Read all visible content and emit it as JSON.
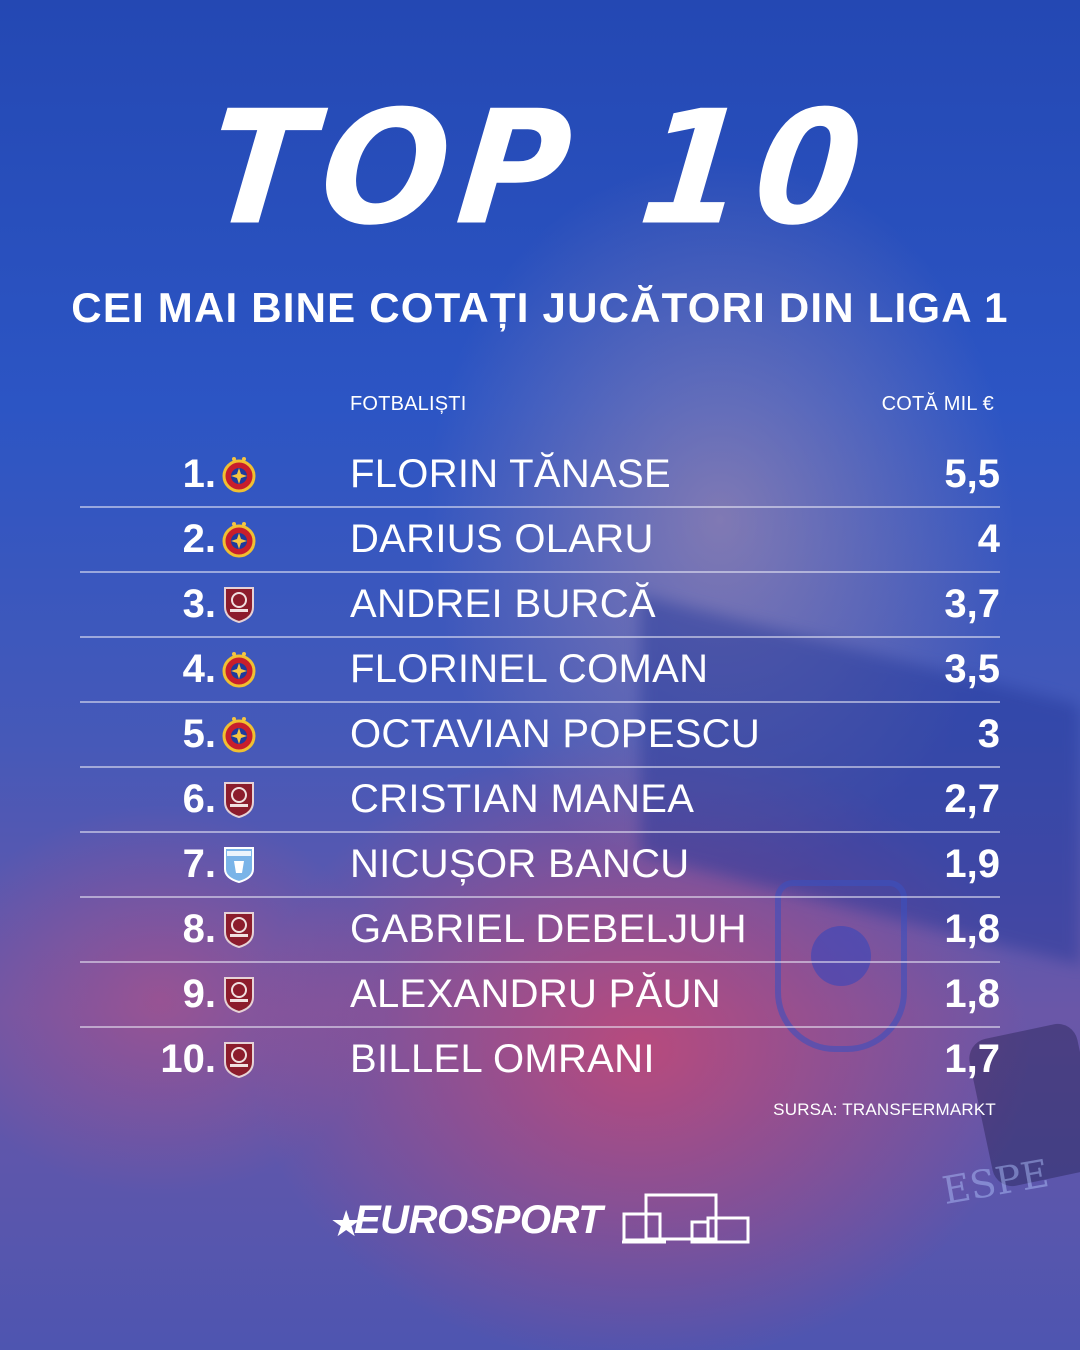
{
  "title": "TOP 10",
  "subtitle": "CEI MAI BINE COTAȚI JUCĂTORI DIN LIGA 1",
  "columns": {
    "name": "FOTBALIȘTI",
    "value": "COTĂ MIL €"
  },
  "rows": [
    {
      "rank": "1.",
      "club_icon": "fcsb-crest-icon",
      "player": "FLORIN TĂNASE",
      "value": "5,5"
    },
    {
      "rank": "2.",
      "club_icon": "fcsb-crest-icon",
      "player": "DARIUS OLARU",
      "value": "4"
    },
    {
      "rank": "3.",
      "club_icon": "cfr-cluj-crest-icon",
      "player": "ANDREI BURCĂ",
      "value": "3,7"
    },
    {
      "rank": "4.",
      "club_icon": "fcsb-crest-icon",
      "player": "FLORINEL COMAN",
      "value": "3,5"
    },
    {
      "rank": "5.",
      "club_icon": "fcsb-crest-icon",
      "player": "OCTAVIAN POPESCU",
      "value": "3"
    },
    {
      "rank": "6.",
      "club_icon": "cfr-cluj-crest-icon",
      "player": "CRISTIAN MANEA",
      "value": "2,7"
    },
    {
      "rank": "7.",
      "club_icon": "craiova-crest-icon",
      "player": "NICUȘOR BANCU",
      "value": "1,9"
    },
    {
      "rank": "8.",
      "club_icon": "cfr-cluj-crest-icon",
      "player": "GABRIEL DEBELJUH",
      "value": "1,8"
    },
    {
      "rank": "9.",
      "club_icon": "cfr-cluj-crest-icon",
      "player": "ALEXANDRU PĂUN",
      "value": "1,8"
    },
    {
      "rank": "10.",
      "club_icon": "cfr-cluj-crest-icon",
      "player": "BILLEL OMRANI",
      "value": "1,7"
    }
  ],
  "source": "SURSA: TRANSFERMARKT",
  "brand": {
    "name": "EUROSPORT",
    "icon": "devices-icon"
  },
  "colors": {
    "background": "#2c55c4",
    "fcsb_red": "#c81e2c",
    "fcsb_blue": "#1e3a9c",
    "cfr_maroon": "#8c1c2c",
    "craiova_blue": "#7ab4e8"
  }
}
